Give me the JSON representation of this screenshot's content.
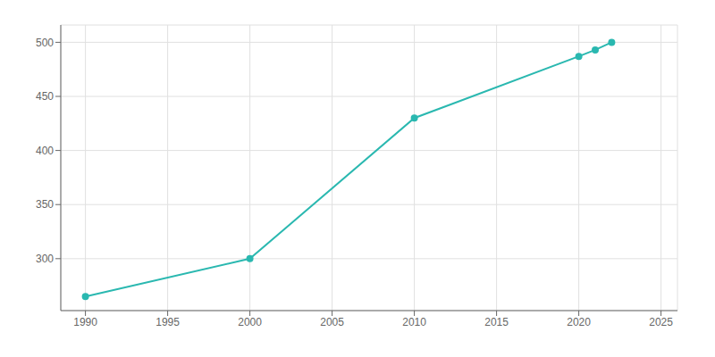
{
  "chart_data": {
    "type": "line",
    "x": [
      1990,
      2000,
      2010,
      2020,
      2021,
      2022
    ],
    "values": [
      265,
      300,
      430,
      487,
      493,
      500
    ],
    "color": "#2ab8b0",
    "marker": "circle",
    "xlim": [
      1988.5,
      2026
    ],
    "ylim": [
      252,
      516
    ],
    "xticks": [
      1990,
      1995,
      2000,
      2005,
      2010,
      2015,
      2020,
      2025
    ],
    "yticks": [
      300,
      350,
      400,
      450,
      500
    ],
    "grid": true
  }
}
